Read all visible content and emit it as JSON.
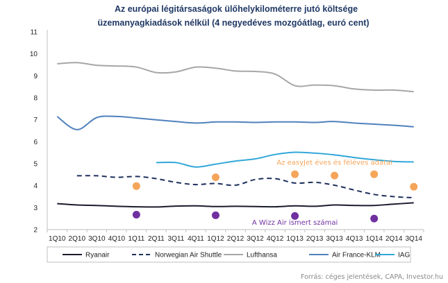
{
  "chart_data": {
    "type": "line",
    "title_line1": "Az európai légitársaságok ülőhelykilométerre jutó költsége",
    "title_line2": "üzemanyagkiadások nélkül (4 negyedéves mozgóátlag, euró cent)",
    "x": [
      "1Q10",
      "2Q10",
      "3Q10",
      "4Q10",
      "1Q11",
      "2Q11",
      "3Q11",
      "4Q11",
      "1Q12",
      "2Q12",
      "3Q12",
      "4Q12",
      "1Q13",
      "2Q13",
      "3Q13",
      "4Q13",
      "1Q14",
      "2Q14",
      "3Q14"
    ],
    "ylim": [
      2,
      11
    ],
    "yticks": [
      2,
      3,
      4,
      5,
      6,
      7,
      8,
      9,
      10,
      11
    ],
    "grid": false,
    "legend_position": "bottom",
    "series": [
      {
        "name": "Ryanair",
        "color": "#1a1a2e",
        "style": "solid",
        "values": [
          3.18,
          3.12,
          3.1,
          3.06,
          3.04,
          3.03,
          3.07,
          3.08,
          3.05,
          3.06,
          3.05,
          3.04,
          3.08,
          3.06,
          3.12,
          3.1,
          3.1,
          3.16,
          3.22
        ]
      },
      {
        "name": "Norwegian Air Shuttle",
        "color": "#1f2f5c",
        "style": "dashed",
        "values": [
          null,
          4.45,
          4.45,
          4.38,
          4.42,
          4.32,
          4.15,
          4.05,
          4.1,
          4.02,
          4.28,
          4.32,
          4.12,
          4.15,
          4.02,
          3.8,
          3.6,
          3.5,
          3.45
        ]
      },
      {
        "name": "Lufthansa",
        "color": "#a6a6a6",
        "style": "solid",
        "values": [
          9.55,
          9.6,
          9.48,
          9.45,
          9.4,
          9.15,
          9.18,
          9.4,
          9.35,
          9.22,
          9.2,
          9.08,
          8.55,
          8.58,
          8.55,
          8.4,
          8.35,
          8.35,
          8.28
        ]
      },
      {
        "name": "Air France-KLM",
        "color": "#4f81bd",
        "style": "solid",
        "values": [
          7.15,
          6.55,
          7.1,
          7.15,
          7.08,
          7.0,
          6.92,
          6.85,
          6.9,
          6.9,
          6.88,
          6.9,
          6.9,
          6.88,
          6.92,
          6.85,
          6.8,
          6.75,
          6.68
        ]
      },
      {
        "name": "IAG",
        "color": "#31a7d8",
        "style": "solid",
        "values": [
          null,
          null,
          null,
          null,
          null,
          5.05,
          5.05,
          4.85,
          4.98,
          5.12,
          5.22,
          5.42,
          5.52,
          5.48,
          5.4,
          5.28,
          5.18,
          5.1,
          5.08
        ]
      }
    ],
    "points": [
      {
        "name": "Az easyJet éves és féléves adatai",
        "color": "#f5a55a",
        "data": [
          [
            "1Q11",
            3.98
          ],
          [
            "1Q12",
            4.38
          ],
          [
            "1Q13",
            4.52
          ],
          [
            "3Q13",
            4.46
          ],
          [
            "1Q14",
            4.52
          ],
          [
            "3Q14",
            3.95
          ]
        ]
      },
      {
        "name": "A Wizz Air ismert számai",
        "color": "#7030a0",
        "data": [
          [
            "1Q11",
            2.68
          ],
          [
            "1Q12",
            2.65
          ],
          [
            "1Q13",
            2.62
          ],
          [
            "1Q14",
            2.5
          ]
        ]
      }
    ],
    "annotations": [
      {
        "text": "Az easyJet éves és féléves adatai",
        "color": "#f5a55a",
        "at_x": "3Q13",
        "at_y": 4.95
      },
      {
        "text": "A Wizz Air ismert számai",
        "color": "#7030a0",
        "at_x": "1Q13",
        "at_y": 2.22
      }
    ],
    "source": "Forrás: céges jelentések, CAPA, Investor.hu"
  }
}
